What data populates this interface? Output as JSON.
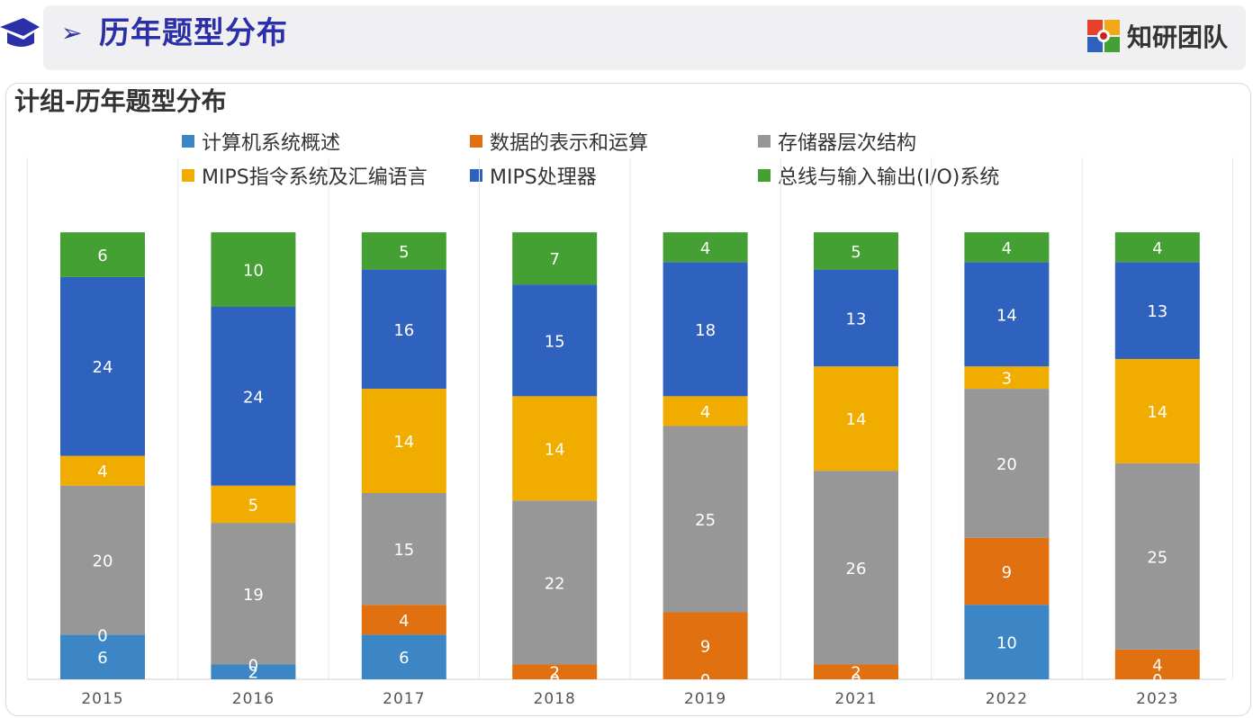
{
  "header": {
    "arrow": "➢",
    "title": "历年题型分布",
    "brand": "知研团队"
  },
  "chart_data": {
    "type": "bar",
    "stacked": true,
    "title": "计组-历年题型分布",
    "categories": [
      "2015",
      "2016",
      "2017",
      "2018",
      "2019",
      "2021",
      "2022",
      "2023"
    ],
    "series": [
      {
        "name": "计算机系统概述",
        "color": "#3d86c6",
        "values": [
          6,
          2,
          6,
          0,
          0,
          0,
          10,
          0
        ]
      },
      {
        "name": "数据的表示和运算",
        "color": "#e07010",
        "values": [
          0,
          0,
          4,
          2,
          9,
          2,
          9,
          4
        ]
      },
      {
        "name": "存储器层次结构",
        "color": "#979797",
        "values": [
          20,
          19,
          15,
          22,
          25,
          26,
          20,
          25
        ]
      },
      {
        "name": "MIPS指令系统及汇编语言",
        "color": "#f0ad00",
        "values": [
          4,
          5,
          14,
          14,
          4,
          14,
          3,
          14
        ]
      },
      {
        "name": "MIPS处理器",
        "color": "#2f62be",
        "values": [
          24,
          24,
          16,
          15,
          18,
          13,
          14,
          13
        ]
      },
      {
        "name": "总线与输入输出(I/O)系统",
        "color": "#44a033",
        "values": [
          6,
          10,
          5,
          7,
          4,
          5,
          4,
          4
        ]
      }
    ],
    "legend_position": "top",
    "grid": false
  }
}
